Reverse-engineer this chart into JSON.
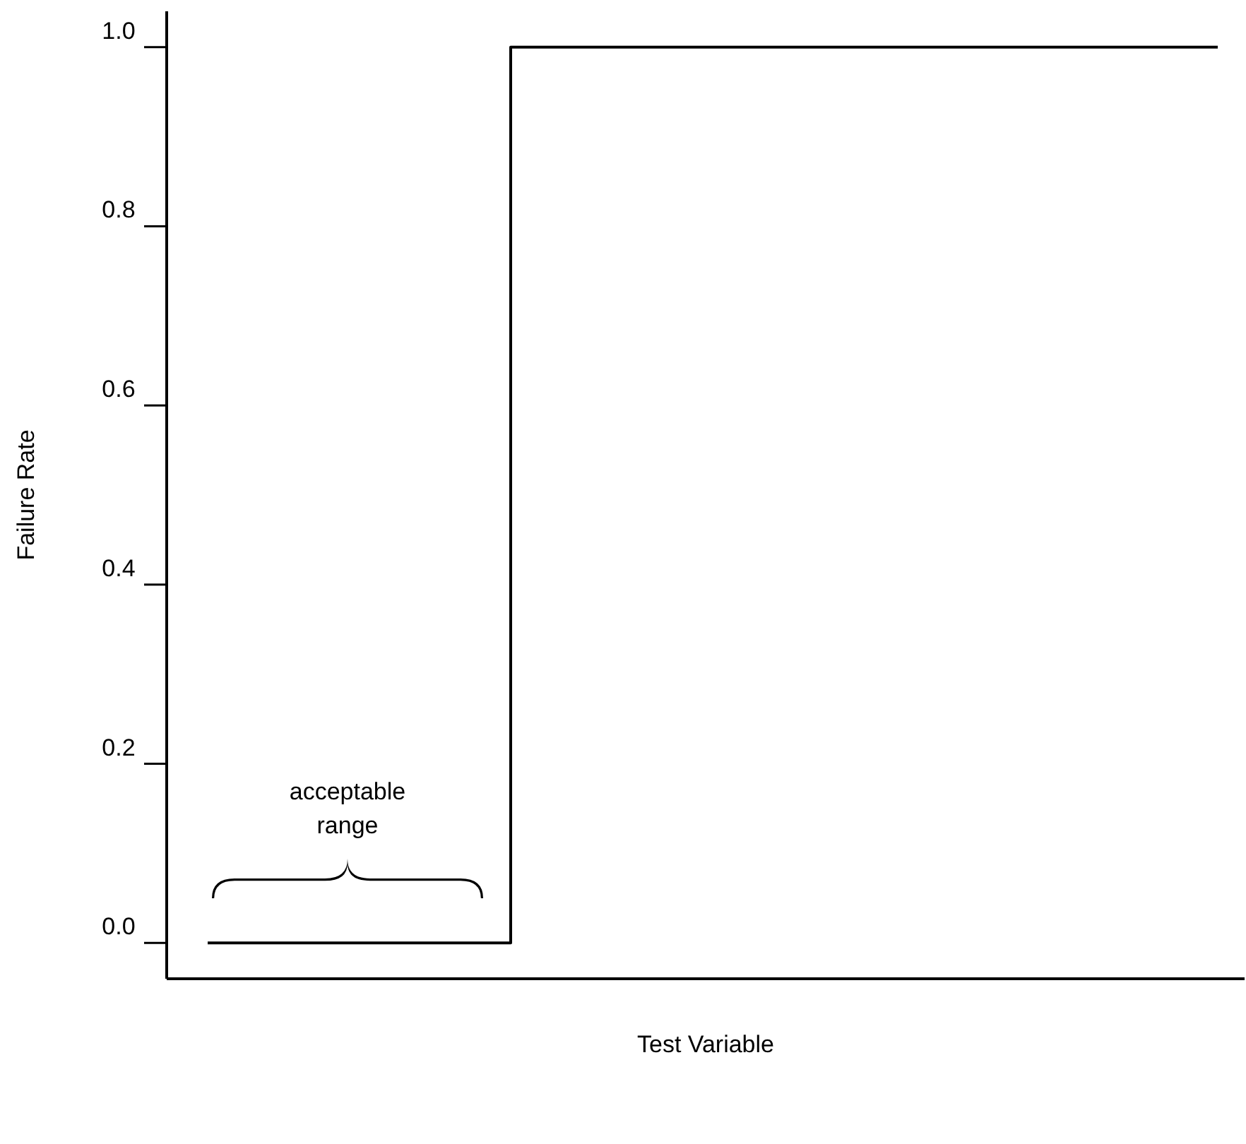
{
  "chart_data": {
    "type": "step",
    "xlabel": "Test Variable",
    "ylabel": "Failure Rate",
    "categories": [
      null,
      null,
      null,
      null,
      null,
      null,
      null,
      null,
      null,
      null,
      null
    ],
    "values": [
      0,
      0,
      0,
      1,
      1,
      1,
      1,
      1,
      1,
      1,
      1
    ],
    "color": "#000000",
    "ylim": [
      -0.04,
      1.04
    ],
    "yticks": [
      {
        "value": 0,
        "label": "0.0"
      },
      {
        "value": 0.2,
        "label": "0.2"
      },
      {
        "value": 0.4,
        "label": "0.4"
      },
      {
        "value": 0.6,
        "label": "0.6"
      },
      {
        "value": 0.8,
        "label": "0.8"
      },
      {
        "value": 1,
        "label": "1.0"
      }
    ],
    "tick_labels": "y",
    "annotations": [
      "acceptable range"
    ]
  }
}
